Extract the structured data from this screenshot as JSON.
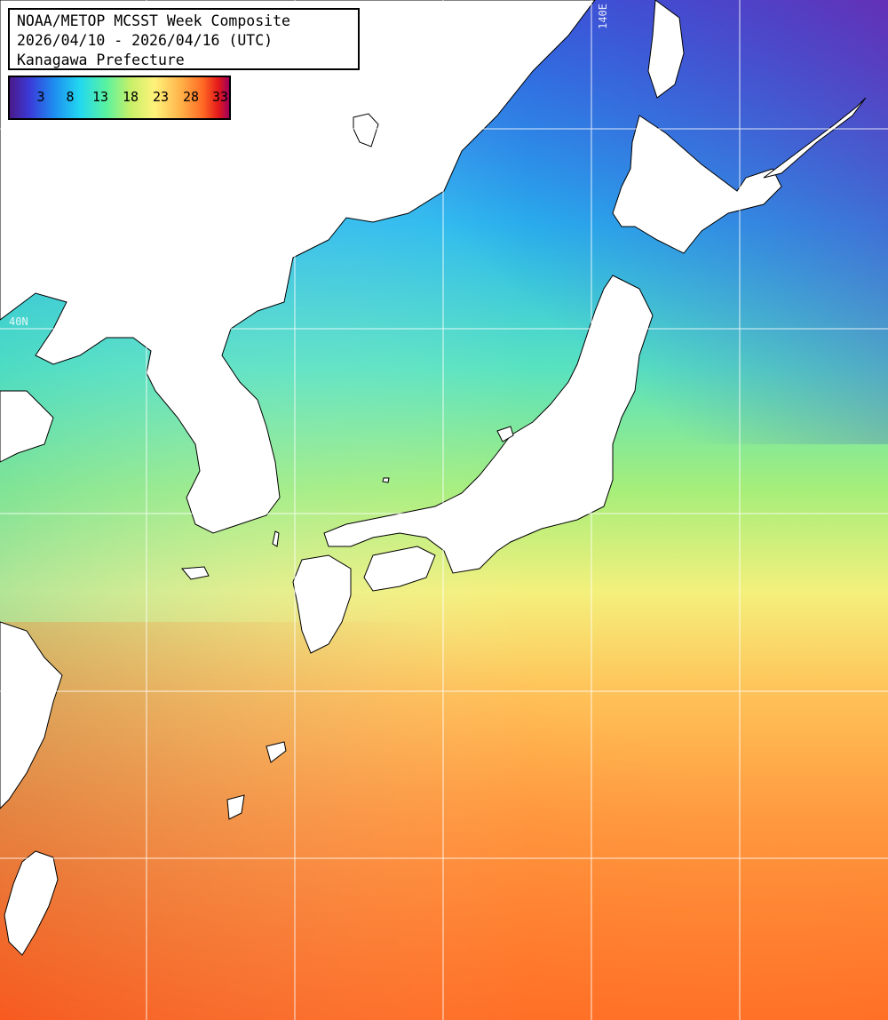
{
  "header": {
    "line1": "NOAA/METOP MCSST Week Composite",
    "line2": "2026/04/10 - 2026/04/16 (UTC)",
    "line3": "Kanagawa Prefecture"
  },
  "legend": {
    "ticks": [
      "3",
      "8",
      "13",
      "18",
      "23",
      "28",
      "33"
    ]
  },
  "grid": {
    "lon_label": "140E",
    "lat_label": "40N"
  },
  "colors": {
    "cold": "#5b2aa0",
    "cool": "#1e8cf0",
    "mild": "#5af2a0",
    "warm": "#fff27a",
    "hot": "#ff6a24",
    "land": "#ffffff",
    "grid": "#ffffff"
  }
}
